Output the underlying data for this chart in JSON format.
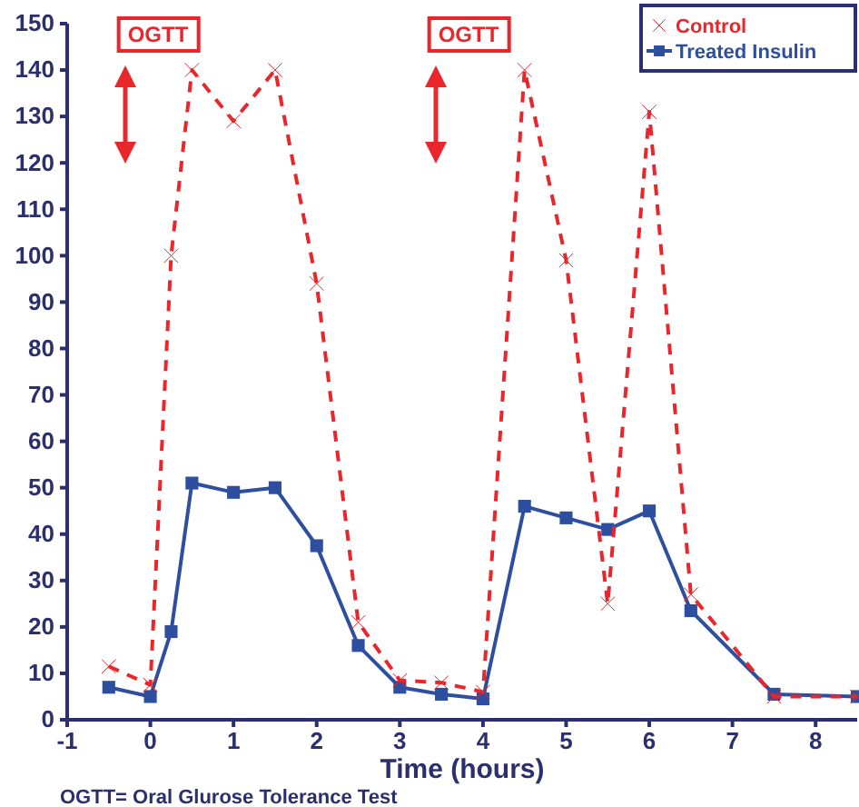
{
  "chart_data": {
    "type": "line",
    "xlabel": "Time (hours)",
    "x": [
      -0.5,
      0,
      0.25,
      0.5,
      1,
      1.5,
      2,
      2.5,
      3,
      3.5,
      4,
      4.5,
      5,
      5.5,
      6,
      6.5,
      7.5,
      8.5
    ],
    "series": [
      {
        "name": "Control",
        "color": "#e8262b",
        "marker": "cross",
        "line_style": "dashed",
        "values": [
          11.5,
          7.5,
          100,
          140,
          129,
          140,
          94,
          21,
          8.5,
          8,
          6,
          140,
          99,
          25,
          131,
          27,
          5,
          5
        ]
      },
      {
        "name": "Treated Insulin",
        "color": "#2e4fa0",
        "marker": "square",
        "line_style": "solid",
        "values": [
          7,
          5,
          19,
          51,
          49,
          50,
          37.5,
          16,
          7,
          5.5,
          4.5,
          46,
          43.5,
          41,
          45,
          23.5,
          5.5,
          5
        ]
      }
    ],
    "xlim": [
      -1,
      8.5
    ],
    "xticks": [
      -1,
      0,
      1,
      2,
      3,
      4,
      5,
      6,
      7,
      8
    ],
    "ylim": [
      0,
      150
    ],
    "yticks": [
      0,
      10,
      20,
      30,
      40,
      50,
      60,
      70,
      80,
      90,
      100,
      110,
      120,
      130,
      140,
      150
    ],
    "grid": false,
    "legend": "top right",
    "annotations": [
      "OGTT",
      "OGTT",
      "OGTT= Oral Glurose Tolerance Test"
    ]
  }
}
